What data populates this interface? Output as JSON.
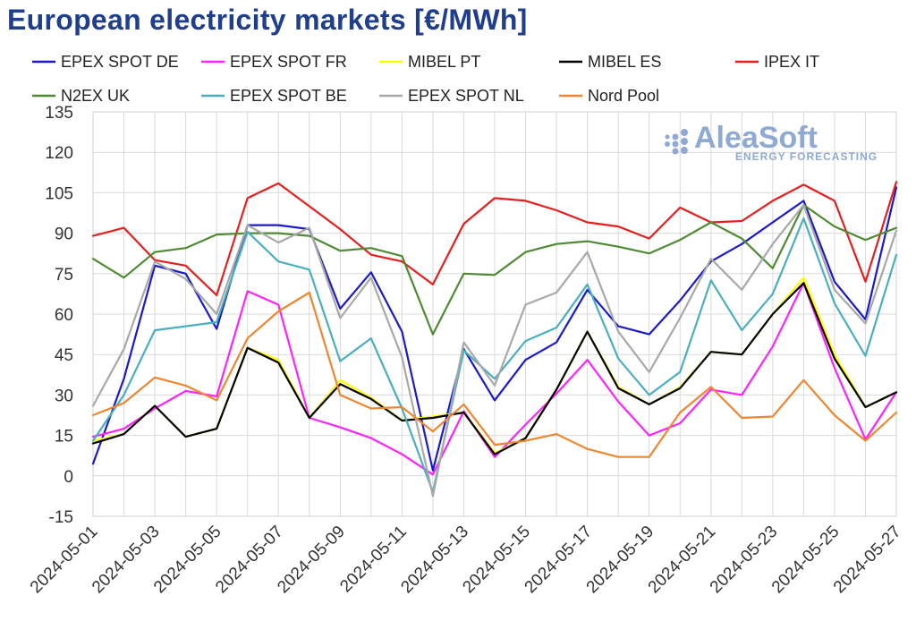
{
  "chart_data": {
    "type": "line",
    "title": "European electricity markets [€/MWh]",
    "ylim": [
      -15,
      135
    ],
    "yticks": [
      -15,
      0,
      15,
      30,
      45,
      60,
      75,
      90,
      105,
      120,
      135
    ],
    "x": [
      "2024-05-01",
      "2024-05-02",
      "2024-05-03",
      "2024-05-04",
      "2024-05-05",
      "2024-05-06",
      "2024-05-07",
      "2024-05-08",
      "2024-05-09",
      "2024-05-10",
      "2024-05-11",
      "2024-05-12",
      "2024-05-13",
      "2024-05-14",
      "2024-05-15",
      "2024-05-16",
      "2024-05-17",
      "2024-05-18",
      "2024-05-19",
      "2024-05-20",
      "2024-05-21",
      "2024-05-22",
      "2024-05-23",
      "2024-05-24",
      "2024-05-25",
      "2024-05-26",
      "2024-05-27"
    ],
    "xtick_labels": [
      "2024-05-01",
      "2024-05-03",
      "2024-05-05",
      "2024-05-07",
      "2024-05-09",
      "2024-05-11",
      "2024-05-13",
      "2024-05-15",
      "2024-05-17",
      "2024-05-19",
      "2024-05-21",
      "2024-05-23",
      "2024-05-25",
      "2024-05-27"
    ],
    "grid": true,
    "legend_position": "top",
    "series": [
      {
        "name": "EPEX SPOT DE",
        "color": "#1a1acc",
        "values": [
          4.5,
          36,
          78,
          75,
          54.5,
          93,
          93,
          91.5,
          62,
          75.5,
          53.5,
          2,
          47,
          28,
          43,
          49.5,
          69,
          55.5,
          52.5,
          65,
          79.5,
          86,
          94,
          102,
          72,
          58,
          107
        ]
      },
      {
        "name": "EPEX SPOT FR",
        "color": "#ff22ff",
        "values": [
          14.5,
          17.5,
          25,
          31.5,
          29.5,
          68.5,
          63.5,
          21.5,
          18,
          14,
          8,
          0.5,
          24,
          7,
          19,
          30.5,
          43,
          27.5,
          15,
          19.5,
          32,
          30,
          48,
          71.5,
          40,
          13.5,
          31
        ]
      },
      {
        "name": "MIBEL PT",
        "color": "#ffff00",
        "values": [
          13,
          15.5,
          26,
          14.5,
          17.5,
          47.5,
          43,
          21.5,
          35.5,
          29,
          20.5,
          22,
          23.5,
          8.5,
          14,
          32,
          53.5,
          33,
          26.5,
          33,
          46,
          45,
          60,
          73.5,
          45,
          25.5,
          31
        ]
      },
      {
        "name": "MIBEL ES",
        "color": "#000000",
        "values": [
          12,
          15.5,
          26,
          14.5,
          17.5,
          47.5,
          42,
          21.5,
          34,
          28.5,
          20.5,
          21.5,
          23.5,
          8,
          14,
          32,
          53.5,
          32.5,
          26.5,
          32.5,
          46,
          45,
          60,
          71.5,
          43.5,
          25.5,
          31
        ]
      },
      {
        "name": "IPEX IT",
        "color": "#e61e1e",
        "values": [
          89,
          92,
          80,
          78,
          67,
          103,
          108.5,
          100,
          91.5,
          82,
          79.5,
          71,
          93.5,
          103,
          102,
          98.5,
          94,
          92.5,
          88,
          99.5,
          94,
          94.5,
          102,
          108,
          102,
          72,
          109
        ]
      },
      {
        "name": "N2EX UK",
        "color": "#4e8a32",
        "values": [
          80.5,
          73.5,
          83,
          84.5,
          89.5,
          90,
          90,
          89,
          83.5,
          84.5,
          81.5,
          52.5,
          75,
          74.5,
          83,
          86,
          87,
          85,
          82.5,
          87.5,
          94,
          88,
          77,
          100.5,
          92.5,
          87.5,
          92
        ]
      },
      {
        "name": "EPEX SPOT BE",
        "color": "#4aaebf",
        "values": [
          13,
          30,
          54,
          55.5,
          57,
          90.5,
          79.5,
          76.5,
          42.5,
          51,
          25,
          -6,
          46.5,
          36,
          50,
          55,
          71,
          43.5,
          30,
          38.5,
          72.5,
          54,
          67.5,
          95.5,
          64,
          44.5,
          82
        ]
      },
      {
        "name": "EPEX SPOT NL",
        "color": "#a8a8a8",
        "values": [
          26,
          47,
          79.5,
          73,
          60,
          93,
          86.5,
          92,
          58.5,
          73.5,
          44,
          -7.5,
          49.5,
          33.5,
          63.5,
          68,
          83,
          53.5,
          38.5,
          58.5,
          80.5,
          69,
          86,
          100.5,
          69,
          56.5,
          91
        ]
      },
      {
        "name": "Nord Pool",
        "color": "#ee8630",
        "values": [
          22.5,
          27,
          36.5,
          33.5,
          28,
          51,
          61,
          68,
          30,
          25,
          25.5,
          16.5,
          26.5,
          11.5,
          13,
          15.5,
          10,
          7,
          7,
          23.5,
          33,
          21.5,
          22,
          35.5,
          22.5,
          13,
          23.5
        ]
      }
    ]
  },
  "logo": {
    "main": "AleaSoft",
    "sub": "ENERGY FORECASTING"
  }
}
